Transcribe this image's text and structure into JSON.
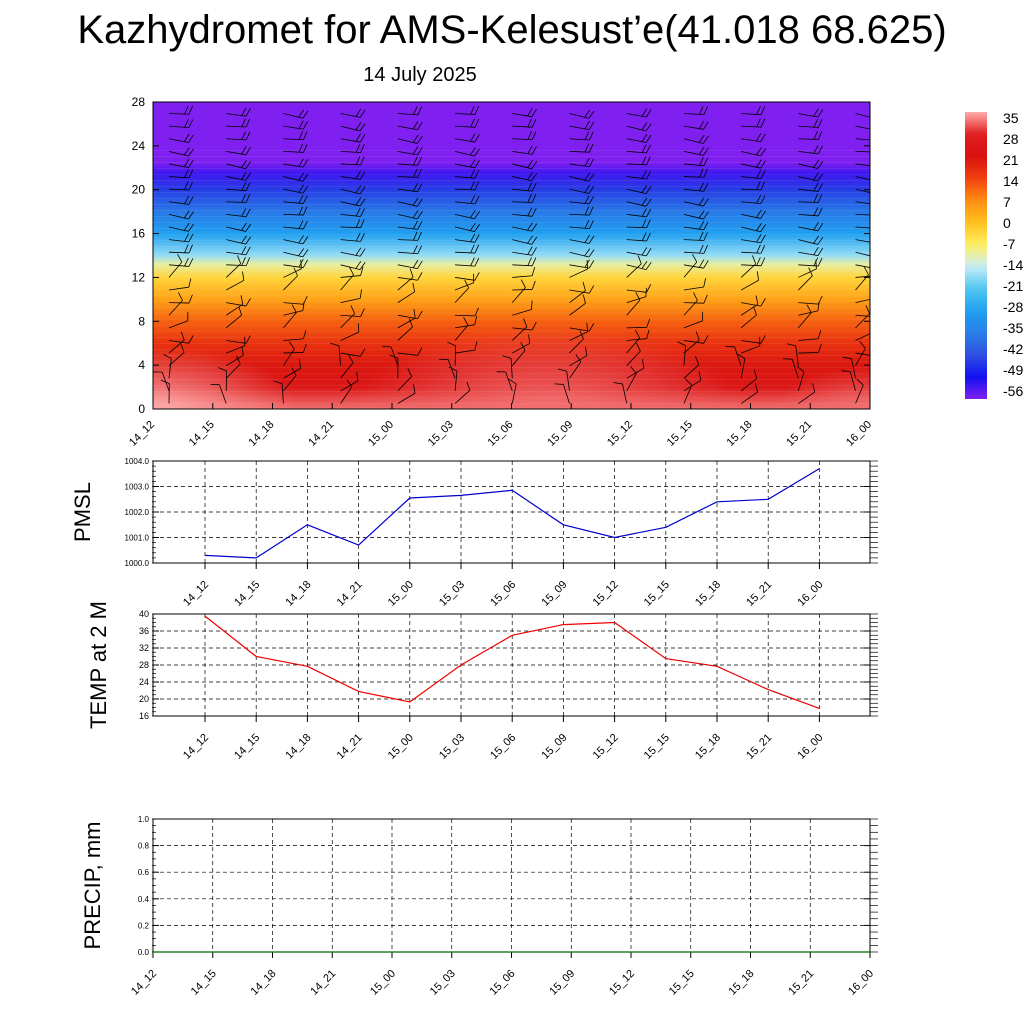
{
  "title": "Kazhydromet for AMS-Kelesust’e(41.018 68.625)",
  "subtitle": "14 July 2025",
  "chart_data": [
    {
      "type": "heatmap",
      "x": [
        "14_12",
        "14_15",
        "14_18",
        "14_21",
        "15_00",
        "15_03",
        "15_06",
        "15_09",
        "15_12",
        "15_15",
        "15_18",
        "15_21",
        "16_00"
      ],
      "y_ticks": [
        0,
        4,
        8,
        12,
        16,
        20,
        24,
        28
      ],
      "ylim": [
        0,
        28
      ],
      "colorbar_labels": [
        "35",
        "28",
        "21",
        "14",
        "7",
        "0",
        "-7",
        "-14",
        "-21",
        "-28",
        "-35",
        "-42",
        "-49",
        "-56"
      ],
      "colorbar_stops": [
        {
          "value": 35,
          "color": "#ffaaaa"
        },
        {
          "value": 28,
          "color": "#e02020"
        },
        {
          "value": 21,
          "color": "#d81010"
        },
        {
          "value": 14,
          "color": "#f04010"
        },
        {
          "value": 7,
          "color": "#ff8c10"
        },
        {
          "value": 0,
          "color": "#ffc020"
        },
        {
          "value": -7,
          "color": "#fff060"
        },
        {
          "value": -14,
          "color": "#c8ecf8"
        },
        {
          "value": -21,
          "color": "#50c8f0"
        },
        {
          "value": -28,
          "color": "#20a0f0"
        },
        {
          "value": -35,
          "color": "#2880e8"
        },
        {
          "value": -42,
          "color": "#3050e0"
        },
        {
          "value": -49,
          "color": "#1010f0"
        },
        {
          "value": -56,
          "color": "#8020f0"
        }
      ],
      "height_temperature_profile": [
        {
          "h": 0,
          "t": 32
        },
        {
          "h": 2,
          "t": 24
        },
        {
          "h": 4,
          "t": 20
        },
        {
          "h": 6,
          "t": 16
        },
        {
          "h": 8,
          "t": 11
        },
        {
          "h": 10,
          "t": 4
        },
        {
          "h": 12,
          "t": -3
        },
        {
          "h": 13.2,
          "t": -10
        },
        {
          "h": 14,
          "t": -17
        },
        {
          "h": 16,
          "t": -28
        },
        {
          "h": 18,
          "t": -36
        },
        {
          "h": 20,
          "t": -44
        },
        {
          "h": 21.5,
          "t": -52
        },
        {
          "h": 22.5,
          "t": -56
        },
        {
          "h": 28,
          "t": -57
        }
      ],
      "wind_barbs": true
    },
    {
      "type": "line",
      "ylabel": "PMSL",
      "x": [
        "14_12",
        "14_15",
        "14_18",
        "14_21",
        "15_00",
        "15_03",
        "15_06",
        "15_09",
        "15_12",
        "15_15",
        "15_18",
        "15_21",
        "16_00"
      ],
      "y_ticks": [
        "1000.0",
        "1001.0",
        "1002.0",
        "1003.0",
        "1004.0"
      ],
      "ylim": [
        1000,
        1004
      ],
      "series": [
        {
          "values": [
            1000.3,
            1000.2,
            1001.5,
            1000.7,
            1002.55,
            1002.65,
            1002.85,
            1001.5,
            1001.0,
            1001.4,
            1002.4,
            1002.5,
            1003.7
          ],
          "color": "#0000cc"
        }
      ]
    },
    {
      "type": "line",
      "ylabel": "TEMP at 2 M",
      "x": [
        "14_12",
        "14_15",
        "14_18",
        "14_21",
        "15_00",
        "15_03",
        "15_06",
        "15_09",
        "15_12",
        "15_15",
        "15_18",
        "15_21",
        "16_00"
      ],
      "y_ticks": [
        "16",
        "20",
        "24",
        "28",
        "32",
        "36",
        "40"
      ],
      "ylim": [
        16,
        40
      ],
      "series": [
        {
          "values": [
            39.5,
            30.0,
            27.7,
            21.8,
            19.3,
            28.0,
            35.0,
            37.5,
            38.0,
            29.5,
            27.7,
            22.2,
            17.8
          ],
          "color": "#ee0000"
        }
      ]
    },
    {
      "type": "line",
      "ylabel": "PRECIP, mm",
      "x": [
        "14_12",
        "14_15",
        "14_18",
        "14_21",
        "15_00",
        "15_03",
        "15_06",
        "15_09",
        "15_12",
        "15_15",
        "15_18",
        "15_21",
        "16_00"
      ],
      "y_ticks": [
        "0.0",
        "0.2",
        "0.4",
        "0.6",
        "0.8",
        "1.0"
      ],
      "ylim": [
        0,
        1
      ],
      "series": [
        {
          "values": [
            0,
            0,
            0,
            0,
            0,
            0,
            0,
            0,
            0,
            0,
            0,
            0,
            0
          ],
          "color": "#006600"
        }
      ]
    }
  ]
}
